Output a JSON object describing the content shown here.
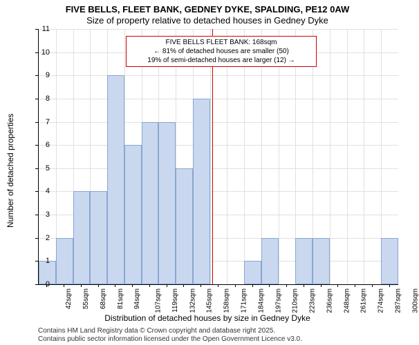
{
  "chart": {
    "type": "histogram",
    "title_main": "FIVE BELLS, FLEET BANK, GEDNEY DYKE, SPALDING, PE12 0AW",
    "title_sub": "Size of property relative to detached houses in Gedney Dyke",
    "title_fontsize": 13,
    "ylabel": "Number of detached properties",
    "xlabel": "Distribution of detached houses by size in Gedney Dyke",
    "label_fontsize": 12,
    "ylim": [
      0,
      11
    ],
    "ytick_step": 1,
    "xcategories": [
      "42sqm",
      "55sqm",
      "68sqm",
      "81sqm",
      "94sqm",
      "107sqm",
      "119sqm",
      "132sqm",
      "145sqm",
      "158sqm",
      "171sqm",
      "184sqm",
      "197sqm",
      "210sqm",
      "223sqm",
      "236sqm",
      "248sqm",
      "261sqm",
      "274sqm",
      "287sqm",
      "300sqm"
    ],
    "values": [
      1,
      2,
      4,
      4,
      9,
      6,
      7,
      7,
      5,
      8,
      0,
      0,
      1,
      2,
      0,
      2,
      2,
      0,
      0,
      0,
      2
    ],
    "bar_fill": "#c9d8ef",
    "bar_border": "#8aa5d0",
    "grid_color": "#e0e0e0",
    "background_color": "#ffffff",
    "vline_color": "#cc0000",
    "vline_x_index": 10.15,
    "annotation": {
      "line1": "FIVE BELLS FLEET BANK: 168sqm",
      "line2": "← 81% of detached houses are smaller (50)",
      "line3": "19% of semi-detached houses are larger (12) →",
      "border_color": "#cc0000"
    },
    "footer1": "Contains HM Land Registry data © Crown copyright and database right 2025.",
    "footer2": "Contains public sector information licensed under the Open Government Licence v3.0.",
    "ticks": {
      "y": [
        "0",
        "1",
        "2",
        "3",
        "4",
        "5",
        "6",
        "7",
        "8",
        "9",
        "10",
        "11"
      ]
    }
  }
}
